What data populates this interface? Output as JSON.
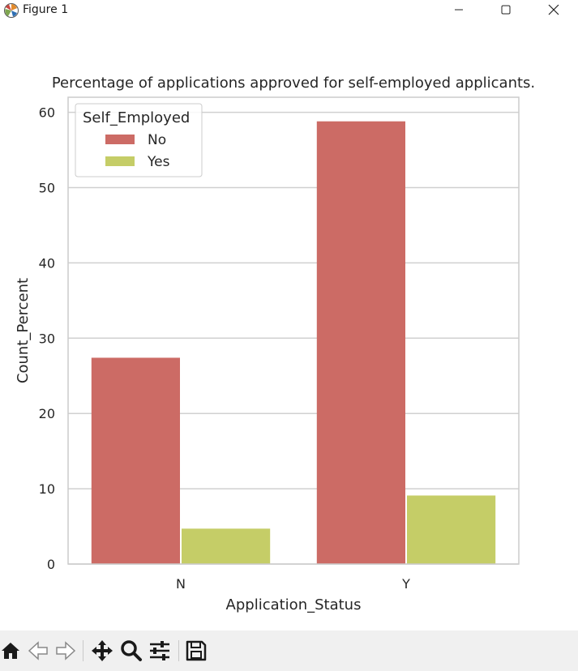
{
  "window": {
    "title": "Figure 1",
    "icons": [
      "matplotlib-icon",
      "minimize-icon",
      "maximize-icon",
      "close-icon"
    ]
  },
  "toolbar": {
    "icons": [
      "home-icon",
      "back-icon",
      "forward-icon",
      "pan-icon",
      "zoom-icon",
      "configure-subplots-icon",
      "save-icon"
    ]
  },
  "colors": {
    "No": "#cc6b65",
    "Yes": "#c5cd67",
    "grid": "#d0d0d0",
    "text": "#262626"
  },
  "chart_data": {
    "type": "bar",
    "title": "Percentage of applications approved for self-employed applicants.",
    "xlabel": "Application_Status",
    "ylabel": "Count_Percent",
    "categories": [
      "N",
      "Y"
    ],
    "series": [
      {
        "name": "No",
        "values": [
          27.4,
          58.8
        ]
      },
      {
        "name": "Yes",
        "values": [
          4.7,
          9.1
        ]
      }
    ],
    "ylim": [
      0,
      62
    ],
    "yticks": [
      0,
      10,
      20,
      30,
      40,
      50,
      60
    ],
    "grid": true,
    "legend": {
      "title": "Self_Employed",
      "placement": "top-left"
    }
  }
}
